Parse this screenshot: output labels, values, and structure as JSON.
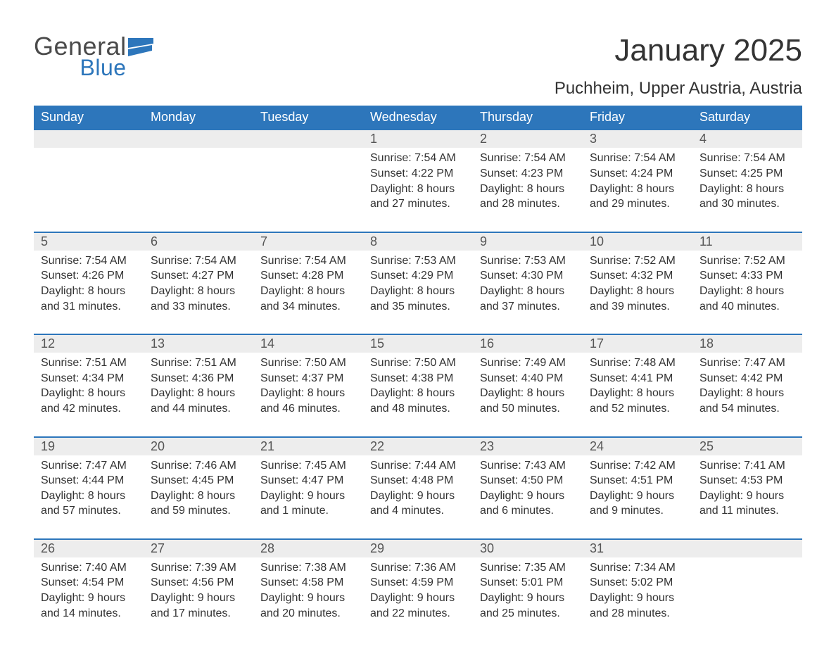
{
  "logo": {
    "word1": "General",
    "word2": "Blue"
  },
  "title": "January 2025",
  "location": "Puchheim, Upper Austria, Austria",
  "colors": {
    "brand_blue": "#2d76bb",
    "header_text": "#ffffff",
    "daynum_bg": "#ededed",
    "daynum_text": "#555555",
    "body_text": "#333333",
    "page_bg": "#ffffff"
  },
  "weekdays": [
    "Sunday",
    "Monday",
    "Tuesday",
    "Wednesday",
    "Thursday",
    "Friday",
    "Saturday"
  ],
  "weeks": [
    [
      null,
      null,
      null,
      {
        "day": "1",
        "sunrise": "7:54 AM",
        "sunset": "4:22 PM",
        "daylight": "8 hours and 27 minutes."
      },
      {
        "day": "2",
        "sunrise": "7:54 AM",
        "sunset": "4:23 PM",
        "daylight": "8 hours and 28 minutes."
      },
      {
        "day": "3",
        "sunrise": "7:54 AM",
        "sunset": "4:24 PM",
        "daylight": "8 hours and 29 minutes."
      },
      {
        "day": "4",
        "sunrise": "7:54 AM",
        "sunset": "4:25 PM",
        "daylight": "8 hours and 30 minutes."
      }
    ],
    [
      {
        "day": "5",
        "sunrise": "7:54 AM",
        "sunset": "4:26 PM",
        "daylight": "8 hours and 31 minutes."
      },
      {
        "day": "6",
        "sunrise": "7:54 AM",
        "sunset": "4:27 PM",
        "daylight": "8 hours and 33 minutes."
      },
      {
        "day": "7",
        "sunrise": "7:54 AM",
        "sunset": "4:28 PM",
        "daylight": "8 hours and 34 minutes."
      },
      {
        "day": "8",
        "sunrise": "7:53 AM",
        "sunset": "4:29 PM",
        "daylight": "8 hours and 35 minutes."
      },
      {
        "day": "9",
        "sunrise": "7:53 AM",
        "sunset": "4:30 PM",
        "daylight": "8 hours and 37 minutes."
      },
      {
        "day": "10",
        "sunrise": "7:52 AM",
        "sunset": "4:32 PM",
        "daylight": "8 hours and 39 minutes."
      },
      {
        "day": "11",
        "sunrise": "7:52 AM",
        "sunset": "4:33 PM",
        "daylight": "8 hours and 40 minutes."
      }
    ],
    [
      {
        "day": "12",
        "sunrise": "7:51 AM",
        "sunset": "4:34 PM",
        "daylight": "8 hours and 42 minutes."
      },
      {
        "day": "13",
        "sunrise": "7:51 AM",
        "sunset": "4:36 PM",
        "daylight": "8 hours and 44 minutes."
      },
      {
        "day": "14",
        "sunrise": "7:50 AM",
        "sunset": "4:37 PM",
        "daylight": "8 hours and 46 minutes."
      },
      {
        "day": "15",
        "sunrise": "7:50 AM",
        "sunset": "4:38 PM",
        "daylight": "8 hours and 48 minutes."
      },
      {
        "day": "16",
        "sunrise": "7:49 AM",
        "sunset": "4:40 PM",
        "daylight": "8 hours and 50 minutes."
      },
      {
        "day": "17",
        "sunrise": "7:48 AM",
        "sunset": "4:41 PM",
        "daylight": "8 hours and 52 minutes."
      },
      {
        "day": "18",
        "sunrise": "7:47 AM",
        "sunset": "4:42 PM",
        "daylight": "8 hours and 54 minutes."
      }
    ],
    [
      {
        "day": "19",
        "sunrise": "7:47 AM",
        "sunset": "4:44 PM",
        "daylight": "8 hours and 57 minutes."
      },
      {
        "day": "20",
        "sunrise": "7:46 AM",
        "sunset": "4:45 PM",
        "daylight": "8 hours and 59 minutes."
      },
      {
        "day": "21",
        "sunrise": "7:45 AM",
        "sunset": "4:47 PM",
        "daylight": "9 hours and 1 minute."
      },
      {
        "day": "22",
        "sunrise": "7:44 AM",
        "sunset": "4:48 PM",
        "daylight": "9 hours and 4 minutes."
      },
      {
        "day": "23",
        "sunrise": "7:43 AM",
        "sunset": "4:50 PM",
        "daylight": "9 hours and 6 minutes."
      },
      {
        "day": "24",
        "sunrise": "7:42 AM",
        "sunset": "4:51 PM",
        "daylight": "9 hours and 9 minutes."
      },
      {
        "day": "25",
        "sunrise": "7:41 AM",
        "sunset": "4:53 PM",
        "daylight": "9 hours and 11 minutes."
      }
    ],
    [
      {
        "day": "26",
        "sunrise": "7:40 AM",
        "sunset": "4:54 PM",
        "daylight": "9 hours and 14 minutes."
      },
      {
        "day": "27",
        "sunrise": "7:39 AM",
        "sunset": "4:56 PM",
        "daylight": "9 hours and 17 minutes."
      },
      {
        "day": "28",
        "sunrise": "7:38 AM",
        "sunset": "4:58 PM",
        "daylight": "9 hours and 20 minutes."
      },
      {
        "day": "29",
        "sunrise": "7:36 AM",
        "sunset": "4:59 PM",
        "daylight": "9 hours and 22 minutes."
      },
      {
        "day": "30",
        "sunrise": "7:35 AM",
        "sunset": "5:01 PM",
        "daylight": "9 hours and 25 minutes."
      },
      {
        "day": "31",
        "sunrise": "7:34 AM",
        "sunset": "5:02 PM",
        "daylight": "9 hours and 28 minutes."
      },
      null
    ]
  ],
  "labels": {
    "sunrise": "Sunrise: ",
    "sunset": "Sunset: ",
    "daylight": "Daylight: "
  }
}
